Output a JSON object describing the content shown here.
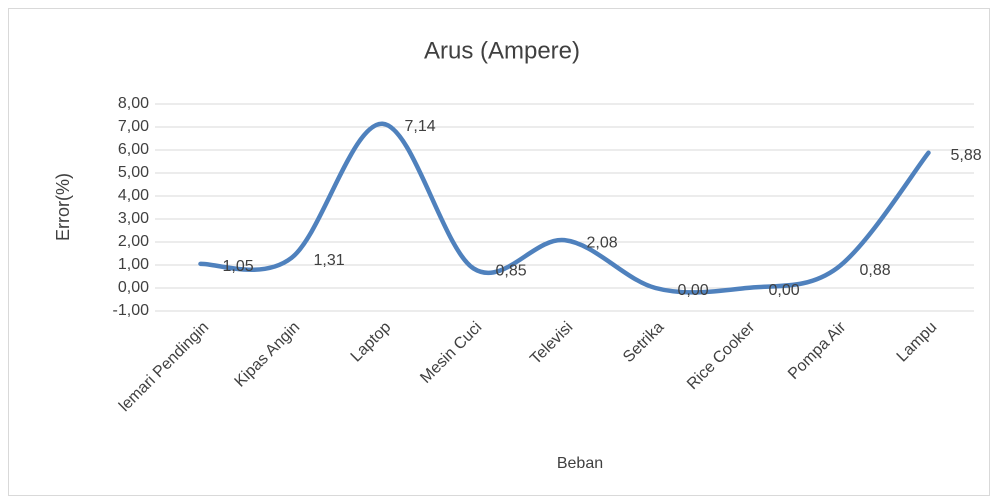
{
  "chart_data": {
    "type": "line",
    "title": "Arus (Ampere)",
    "x_label": "Beban",
    "y_label": "Error(%)",
    "categories": [
      "lemari Pendingin",
      "Kipas Angin",
      "Laptop",
      "Mesin Cuci",
      "Televisi",
      "Setrika",
      "Rice Cooker",
      "Pompa Air",
      "Lampu"
    ],
    "series": [
      {
        "name": "Arus (Ampere)",
        "color": "#4f81bd",
        "values": [
          1.05,
          1.31,
          7.14,
          0.85,
          2.08,
          0,
          0,
          0.88,
          5.88
        ],
        "value_labels": [
          "1,05",
          "1,31",
          "7,14",
          "0,85",
          "2,08",
          "0,00",
          "0,00",
          "0,88",
          "5,88"
        ]
      }
    ],
    "ylim": [
      -1,
      8
    ],
    "yticks": [
      {
        "value": -1,
        "label": "-1,00"
      },
      {
        "value": 0,
        "label": "0,00"
      },
      {
        "value": 1,
        "label": "1,00"
      },
      {
        "value": 2,
        "label": "2,00"
      },
      {
        "value": 3,
        "label": "3,00"
      },
      {
        "value": 4,
        "label": "4,00"
      },
      {
        "value": 5,
        "label": "5,00"
      },
      {
        "value": 6,
        "label": "6,00"
      },
      {
        "value": 7,
        "label": "7,00"
      },
      {
        "value": 8,
        "label": "8,00"
      }
    ],
    "grid": true,
    "smooth": true
  }
}
